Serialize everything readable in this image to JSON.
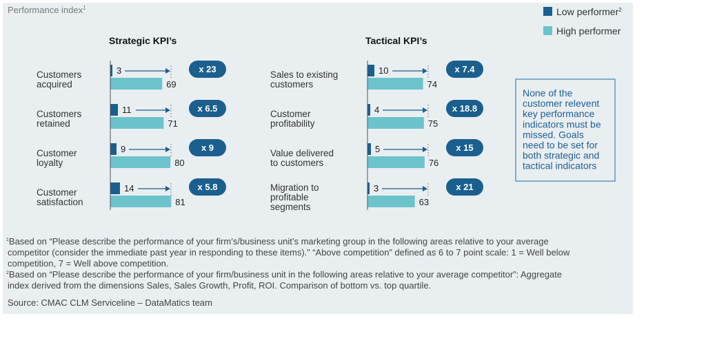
{
  "header": {
    "title": "Performance index",
    "title_sup": "1"
  },
  "legend": [
    {
      "label": "Low performer",
      "sup": "2",
      "color": "#1a5f8e"
    },
    {
      "label": "High performer",
      "sup": "",
      "color": "#6cc3cc"
    }
  ],
  "chart_data": [
    {
      "type": "bar",
      "title": "Strategic KPI’s",
      "categories": [
        [
          "Customers",
          "acquired"
        ],
        [
          "Customers",
          "retained"
        ],
        [
          "Customer",
          "loyalty"
        ],
        [
          "Customer",
          "satisfaction"
        ]
      ],
      "series": [
        {
          "name": "Low performer",
          "values": [
            3,
            11,
            9,
            14
          ]
        },
        {
          "name": "High performer",
          "values": [
            69,
            71,
            80,
            81
          ]
        }
      ],
      "multipliers": [
        "x 23",
        "x 6.5",
        "x 9",
        "x 5.8"
      ]
    },
    {
      "type": "bar",
      "title": "Tactical KPI’s",
      "categories": [
        [
          "Sales to existing",
          "customers"
        ],
        [
          "Customer",
          "profitability"
        ],
        [
          "Value delivered",
          "to customers"
        ],
        [
          "Migration to",
          "profitable",
          "segments"
        ]
      ],
      "series": [
        {
          "name": "Low performer",
          "values": [
            10,
            4,
            5,
            3
          ]
        },
        {
          "name": "High performer",
          "values": [
            74,
            75,
            76,
            63
          ]
        }
      ],
      "multipliers": [
        "x 7.4",
        "x 18.8",
        "x 15",
        "x 21"
      ]
    }
  ],
  "note": [
    "None of the",
    "customer relevent",
    "key performance",
    "indicators must be",
    "missed. Goals",
    "need to be set for",
    "both strategic and",
    "tactical indicators"
  ],
  "footnotes": [
    {
      "sup": "1",
      "lines": [
        "Based on “Please describe the performance of your firm’s/business unit’s marketing group in the following areas relative to your average",
        "competitor (consider the immediate past year in responding to these items).” “Above competition” defined as 6 to 7 point scale: 1 = Well below",
        "competition, 7 = Well above competition."
      ]
    },
    {
      "sup": "2",
      "lines": [
        "Based on “Please describe the performance of your firm/business unit in the following areas relative to your average competitor”: Aggregate",
        "index derived from the dimensions Sales, Sales Growth, Profit, ROI. Comparison of bottom vs. top quartile."
      ]
    }
  ],
  "source": "Source: CMAC CLM Serviceline – DataMatics team",
  "colors": {
    "low": "#1a5f8e",
    "high": "#6cc3cc",
    "badge": "#1a5f8e",
    "note_border": "#3b83b5",
    "note_text": "#1f5f92"
  }
}
